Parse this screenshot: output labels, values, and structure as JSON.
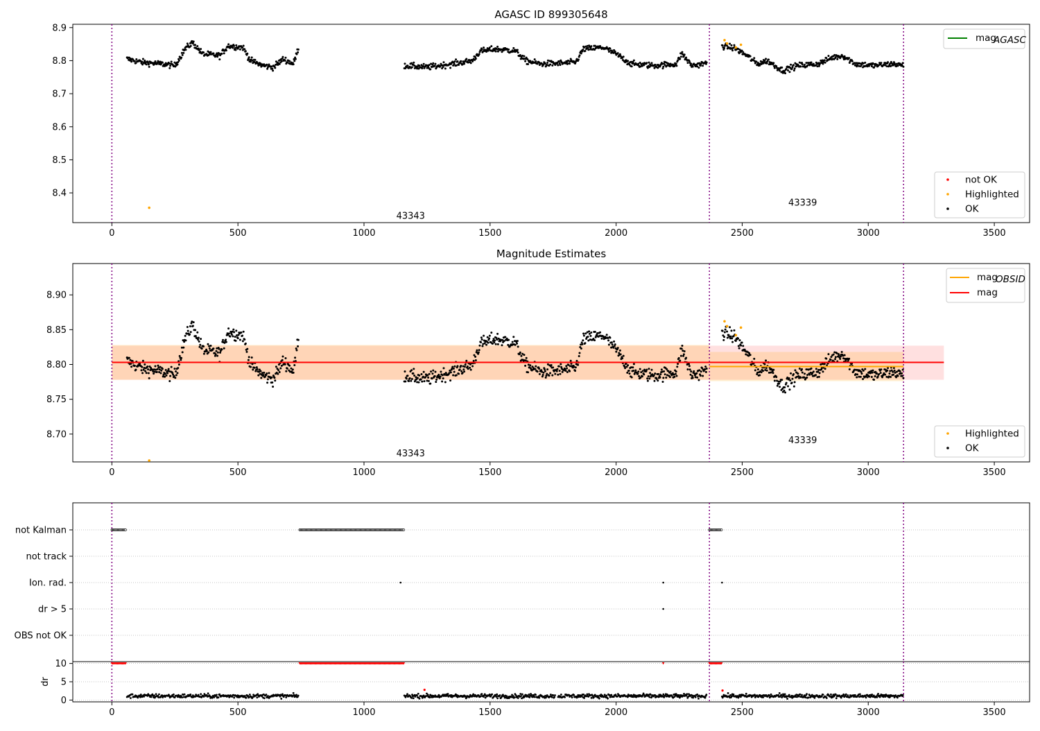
{
  "chart_data": [
    {
      "type": "scatter",
      "title": "AGASC ID 899305648",
      "xlim": [
        -155,
        3640
      ],
      "ylim": [
        8.31,
        8.91
      ],
      "x_ticks": [
        "0",
        "500",
        "1000",
        "1500",
        "2000",
        "2500",
        "3000",
        "3500"
      ],
      "y_ticks": [
        "8.4",
        "8.5",
        "8.6",
        "8.7",
        "8.8",
        "8.9"
      ],
      "legend_lines": [
        {
          "label": "mag",
          "sub": "AGASC",
          "color": "#008000"
        }
      ],
      "legend_points": [
        {
          "label": "not OK",
          "color": "#ff0000"
        },
        {
          "label": "Highlighted",
          "color": "#ffa500"
        },
        {
          "label": "OK",
          "color": "#000000"
        }
      ],
      "annotations": [
        {
          "text": "43343",
          "x": 1185,
          "y": 8.33
        },
        {
          "text": "43339",
          "x": 2740,
          "y": 8.37
        }
      ],
      "vlines": [
        0,
        2370,
        3140
      ],
      "highlighted_points": [
        {
          "x": 148,
          "y": 8.355
        },
        {
          "x": 2430,
          "y": 8.862
        },
        {
          "x": 2440,
          "y": 8.852
        },
        {
          "x": 2475,
          "y": 8.84
        },
        {
          "x": 2495,
          "y": 8.848
        }
      ]
    },
    {
      "type": "scatter",
      "title": "Magnitude Estimates",
      "xlim": [
        -155,
        3640
      ],
      "ylim": [
        8.66,
        8.945
      ],
      "x_ticks": [
        "0",
        "500",
        "1000",
        "1500",
        "2000",
        "2500",
        "3000",
        "3500"
      ],
      "y_ticks": [
        "8.70",
        "8.75",
        "8.80",
        "8.85",
        "8.90"
      ],
      "legend_lines": [
        {
          "label": "mag",
          "sub": "OBSID",
          "color": "#ffa500"
        },
        {
          "label": "mag",
          "sub": "",
          "color": "#ff0000"
        }
      ],
      "legend_points": [
        {
          "label": "Highlighted",
          "color": "#ffa500"
        },
        {
          "label": "OK",
          "color": "#000000"
        }
      ],
      "annotations": [
        {
          "text": "43343",
          "x": 1185,
          "y": 8.672
        },
        {
          "text": "43339",
          "x": 2740,
          "y": 8.691
        }
      ],
      "vlines": [
        0,
        2370,
        3140
      ],
      "mag_mean": 8.803,
      "mag_band": [
        8.778,
        8.827
      ],
      "mag_x_range": [
        0,
        3300
      ],
      "obsid_segments": [
        {
          "x0": 0,
          "x1": 2370,
          "mean": 8.803,
          "band": [
            8.778,
            8.828
          ]
        },
        {
          "x0": 2370,
          "x1": 3140,
          "mean": 8.797,
          "band": [
            8.776,
            8.818
          ]
        }
      ],
      "highlighted_points": [
        {
          "x": 148,
          "y": 8.662
        },
        {
          "x": 2430,
          "y": 8.862
        },
        {
          "x": 2440,
          "y": 8.855
        },
        {
          "x": 2475,
          "y": 8.842
        },
        {
          "x": 2495,
          "y": 8.853
        }
      ]
    },
    {
      "type": "scatter",
      "title": "",
      "xlim": [
        -155,
        3640
      ],
      "categories": [
        "not Kalman",
        "not track",
        "Ion. rad.",
        "dr > 5",
        "OBS not OK"
      ],
      "x_ticks": [],
      "vlines": [
        0,
        2370,
        3140
      ],
      "flag_runs": [
        {
          "row": "not Kalman",
          "x0": 0,
          "x1": 55
        },
        {
          "row": "not Kalman",
          "x0": 745,
          "x1": 1160
        },
        {
          "row": "not Kalman",
          "x0": 2370,
          "x1": 2420
        }
      ],
      "flag_points": [
        {
          "row": "Ion. rad.",
          "x": 1145
        },
        {
          "row": "Ion. rad.",
          "x": 2187
        },
        {
          "row": "Ion. rad.",
          "x": 2420
        },
        {
          "row": "dr > 5",
          "x": 2187
        }
      ]
    },
    {
      "type": "scatter",
      "title": "",
      "ylabel": "dr",
      "xlim": [
        -155,
        3640
      ],
      "ylim": [
        -0.5,
        10.5
      ],
      "x_ticks": [
        "0",
        "500",
        "1000",
        "1500",
        "2000",
        "2500",
        "3000",
        "3500"
      ],
      "y_ticks": [
        "0",
        "5",
        "10"
      ],
      "clipped_runs": [
        {
          "x0": 0,
          "x1": 55,
          "y": 10
        },
        {
          "x0": 745,
          "x1": 1160,
          "y": 10
        },
        {
          "x0": 2370,
          "x1": 2420,
          "y": 10
        }
      ],
      "clipped_points": [
        {
          "x": 2187,
          "y": 10
        }
      ],
      "ok_segments": [
        [
          60,
          740
        ],
        [
          1160,
          1760
        ],
        [
          1770,
          2360
        ],
        [
          2420,
          3140
        ]
      ],
      "vlines": [
        0,
        2370,
        3140
      ]
    }
  ]
}
